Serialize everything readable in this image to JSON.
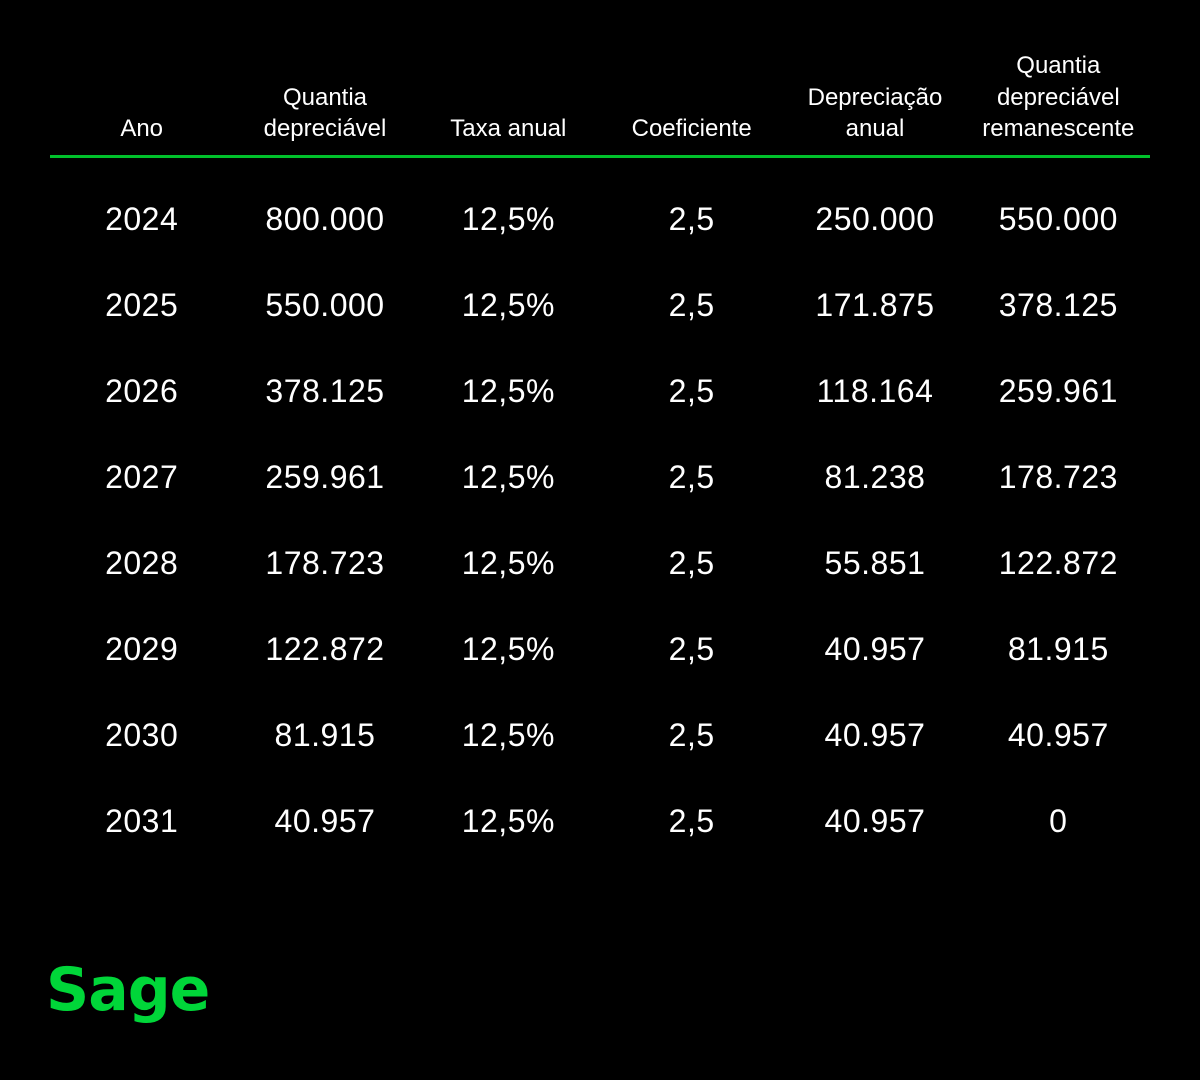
{
  "colors": {
    "background": "#000000",
    "text": "#ffffff",
    "rule_green": "#00C12B",
    "logo_green": "#00D639"
  },
  "table": {
    "columns": [
      "Ano",
      "Quantia depreciável",
      "Taxa anual",
      "Coeficiente",
      "Depreciação anual",
      "Quantia depreciável remanescente"
    ],
    "rows": [
      [
        "2024",
        "800.000",
        "12,5%",
        "2,5",
        "250.000",
        "550.000"
      ],
      [
        "2025",
        "550.000",
        "12,5%",
        "2,5",
        "171.875",
        "378.125"
      ],
      [
        "2026",
        "378.125",
        "12,5%",
        "2,5",
        "118.164",
        "259.961"
      ],
      [
        "2027",
        "259.961",
        "12,5%",
        "2,5",
        "81.238",
        "178.723"
      ],
      [
        "2028",
        "178.723",
        "12,5%",
        "2,5",
        "55.851",
        "122.872"
      ],
      [
        "2029",
        "122.872",
        "12,5%",
        "2,5",
        "40.957",
        "81.915"
      ],
      [
        "2030",
        "81.915",
        "12,5%",
        "2,5",
        "40.957",
        "40.957"
      ],
      [
        "2031",
        "40.957",
        "12,5%",
        "2,5",
        "40.957",
        "0"
      ]
    ]
  },
  "logo": {
    "text": "Sage"
  }
}
